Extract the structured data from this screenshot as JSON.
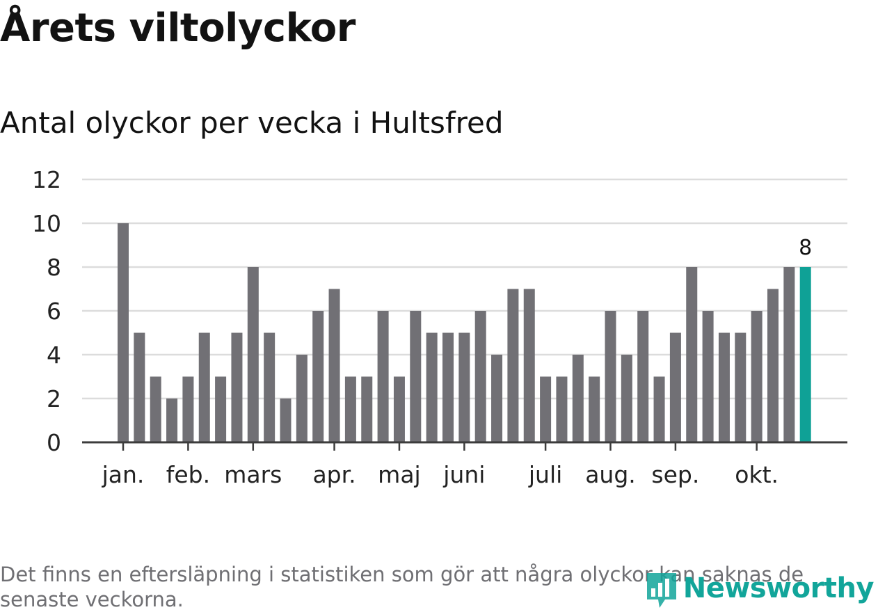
{
  "header": {
    "title": "Årets viltolyckor",
    "subtitle": "Antal olyckor per vecka i Hultsfred"
  },
  "footer": {
    "note": "Det finns en eftersläpning i statistiken som gör att några olyckor kan saknas de senaste veckorna.",
    "logo_text": "Newsworthy"
  },
  "colors": {
    "bar": "#717075",
    "highlight": "#0fa196",
    "grid": "#dcdcdc",
    "axis": "#3c3c3c"
  },
  "chart_data": {
    "type": "bar",
    "title": "Antal olyckor per vecka i Hultsfred",
    "xlabel": "",
    "ylabel": "",
    "ylim": [
      0,
      12
    ],
    "yticks": [
      0,
      2,
      4,
      6,
      8,
      10,
      12
    ],
    "grid": true,
    "values": [
      10,
      5,
      3,
      2,
      3,
      5,
      3,
      5,
      8,
      5,
      2,
      4,
      6,
      7,
      3,
      3,
      6,
      3,
      6,
      5,
      5,
      5,
      6,
      4,
      7,
      7,
      3,
      3,
      4,
      3,
      6,
      4,
      6,
      3,
      5,
      8,
      6,
      5,
      5,
      6,
      7,
      8,
      8
    ],
    "highlight_index": 42,
    "highlight_label": "8",
    "month_ticks": [
      {
        "label": "jan.",
        "index": 0
      },
      {
        "label": "feb.",
        "index": 4
      },
      {
        "label": "mars",
        "index": 8
      },
      {
        "label": "apr.",
        "index": 13
      },
      {
        "label": "maj",
        "index": 17
      },
      {
        "label": "juni",
        "index": 21
      },
      {
        "label": "juli",
        "index": 26
      },
      {
        "label": "aug.",
        "index": 30
      },
      {
        "label": "sep.",
        "index": 34
      },
      {
        "label": "okt.",
        "index": 39
      }
    ]
  }
}
